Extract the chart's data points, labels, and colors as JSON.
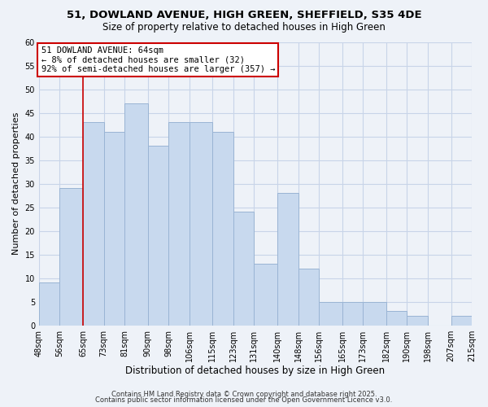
{
  "title": "51, DOWLAND AVENUE, HIGH GREEN, SHEFFIELD, S35 4DE",
  "subtitle": "Size of property relative to detached houses in High Green",
  "xlabel": "Distribution of detached houses by size in High Green",
  "ylabel": "Number of detached properties",
  "footer_line1": "Contains HM Land Registry data © Crown copyright and database right 2025.",
  "footer_line2": "Contains public sector information licensed under the Open Government Licence v3.0.",
  "bins": [
    48,
    56,
    65,
    73,
    81,
    90,
    98,
    106,
    115,
    123,
    131,
    140,
    148,
    156,
    165,
    173,
    182,
    190,
    198,
    207,
    215
  ],
  "bin_labels": [
    "48sqm",
    "56sqm",
    "65sqm",
    "73sqm",
    "81sqm",
    "90sqm",
    "98sqm",
    "106sqm",
    "115sqm",
    "123sqm",
    "131sqm",
    "140sqm",
    "148sqm",
    "156sqm",
    "165sqm",
    "173sqm",
    "182sqm",
    "190sqm",
    "198sqm",
    "207sqm",
    "215sqm"
  ],
  "counts": [
    9,
    29,
    43,
    41,
    47,
    38,
    43,
    43,
    41,
    24,
    13,
    28,
    12,
    5,
    5,
    5,
    3,
    2,
    0,
    2
  ],
  "bar_color": "#c8d9ee",
  "bar_edge_color": "#9ab4d4",
  "grid_color": "#c8d4e8",
  "background_color": "#eef2f8",
  "vline_x": 65,
  "vline_color": "#cc0000",
  "annotation_line1": "51 DOWLAND AVENUE: 64sqm",
  "annotation_line2": "← 8% of detached houses are smaller (32)",
  "annotation_line3": "92% of semi-detached houses are larger (357) →",
  "annotation_box_color": "#ffffff",
  "annotation_box_edge": "#cc0000",
  "ylim": [
    0,
    60
  ],
  "yticks": [
    0,
    5,
    10,
    15,
    20,
    25,
    30,
    35,
    40,
    45,
    50,
    55,
    60
  ],
  "title_fontsize": 9.5,
  "subtitle_fontsize": 8.5,
  "xlabel_fontsize": 8.5,
  "ylabel_fontsize": 8.0,
  "tick_fontsize": 7.0,
  "annotation_fontsize": 7.5,
  "footer_fontsize": 6.0
}
